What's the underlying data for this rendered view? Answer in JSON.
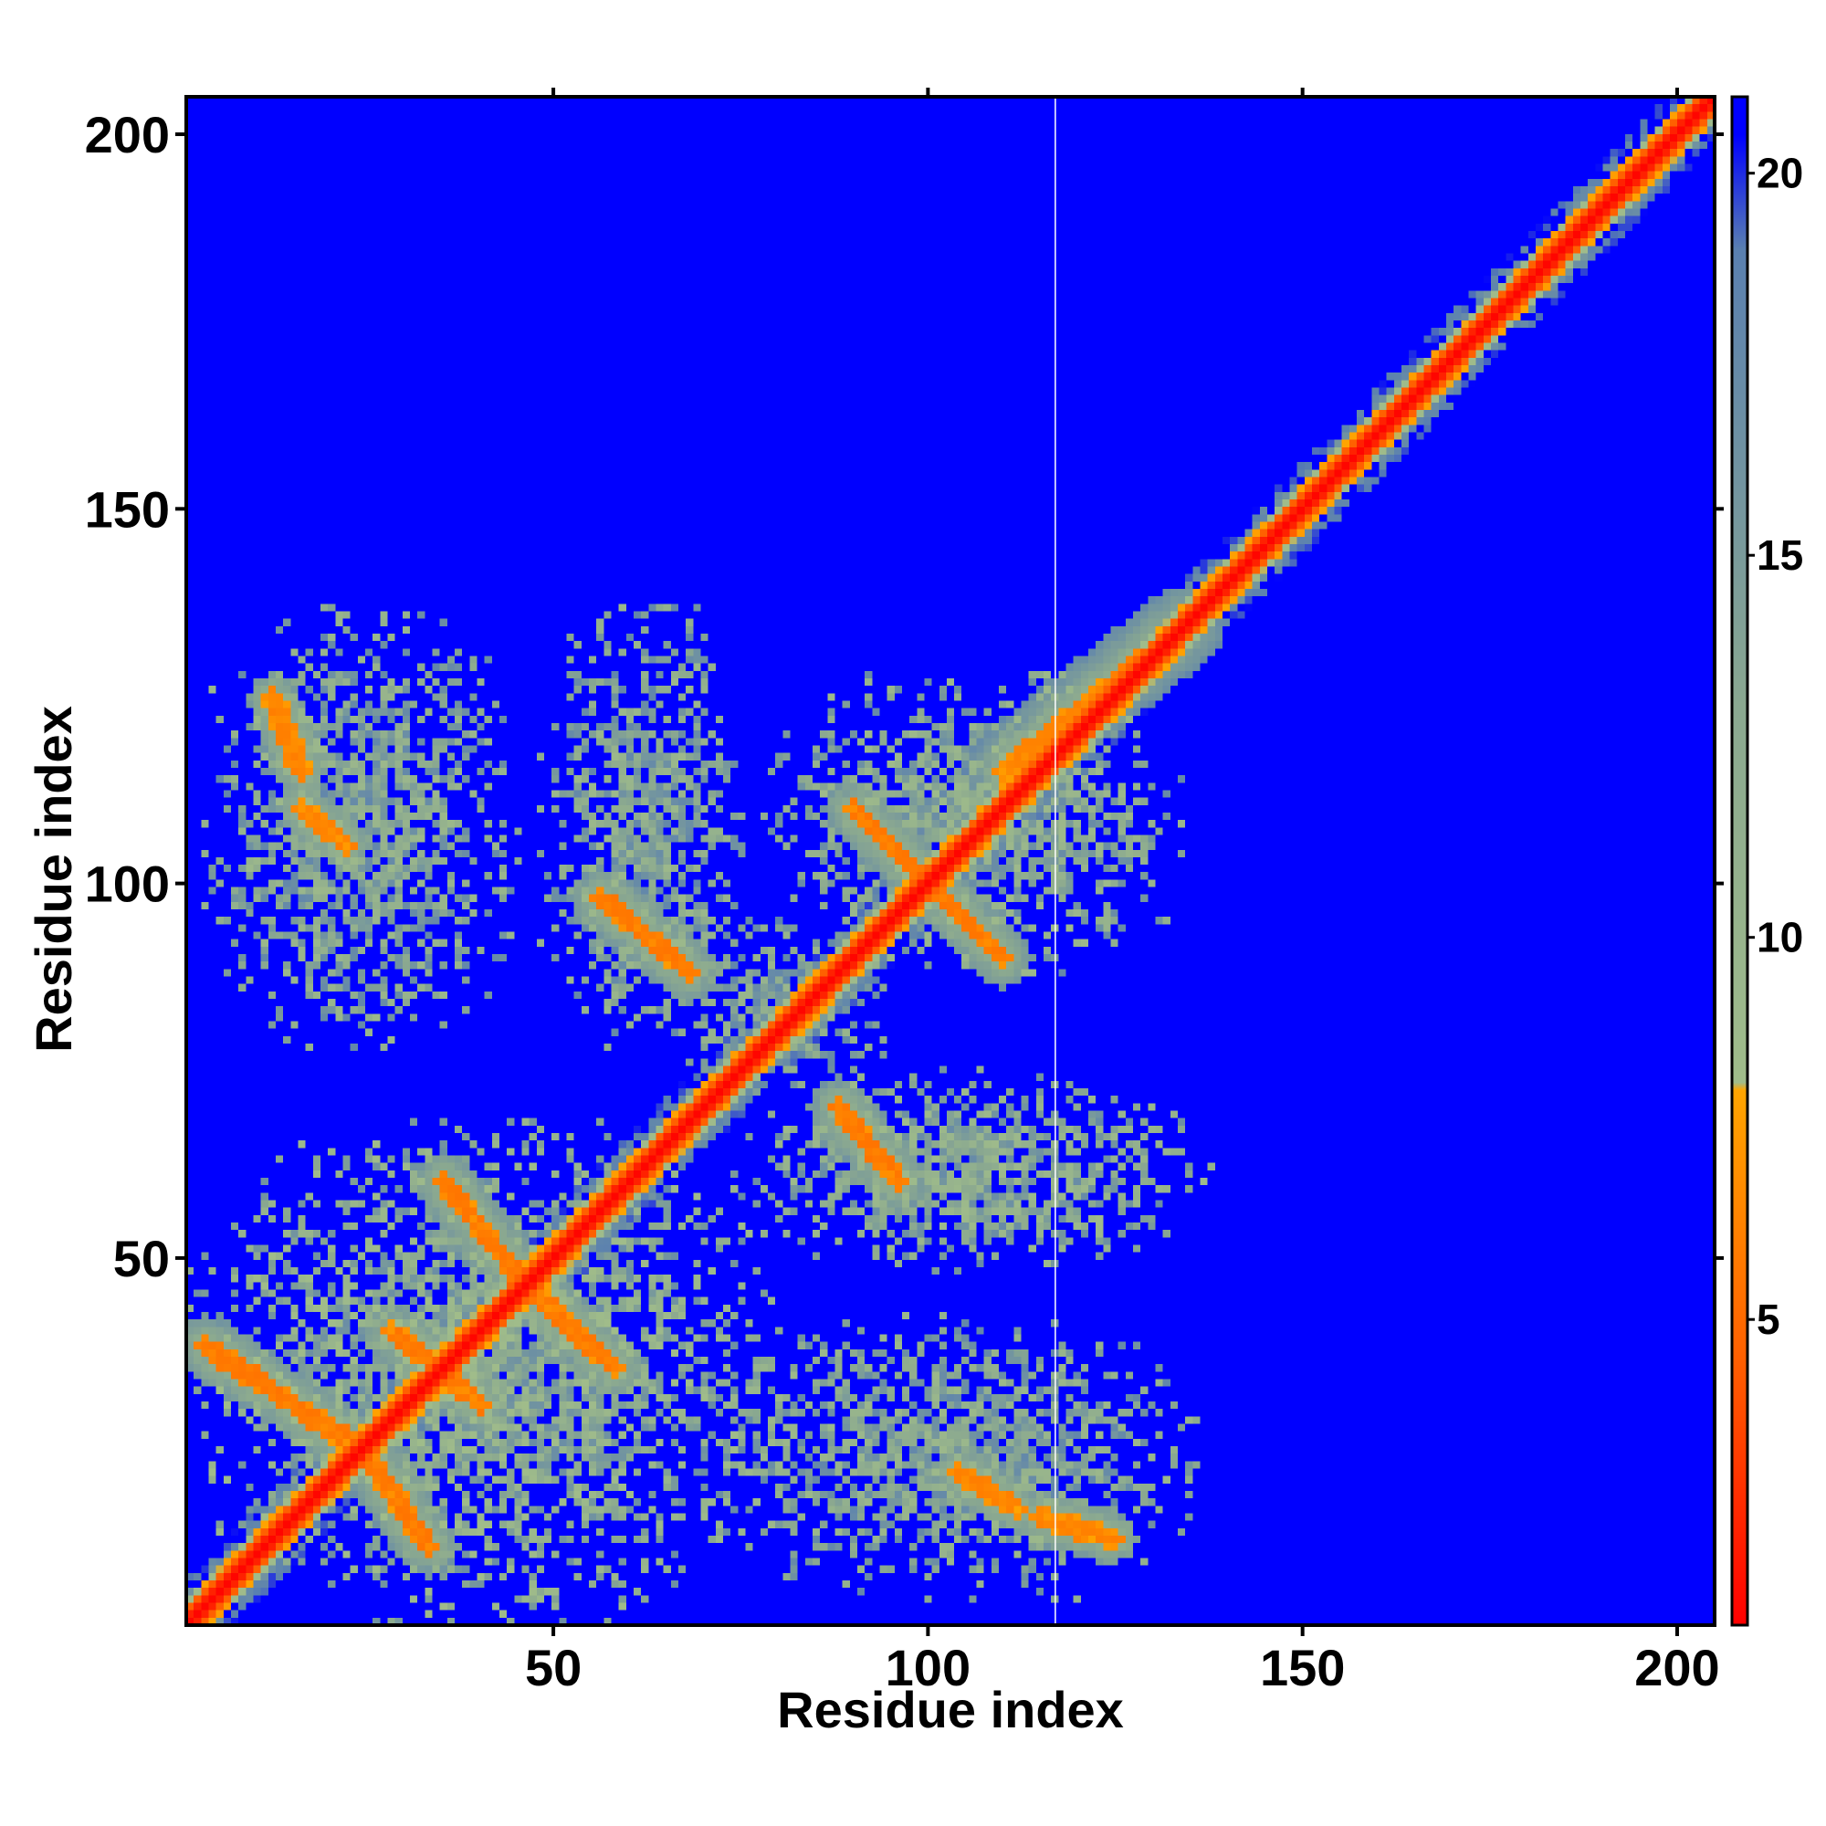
{
  "chart_data": {
    "type": "heatmap",
    "title": "",
    "xlabel": "Residue index",
    "ylabel": "Residue index",
    "xlim": [
      1,
      205
    ],
    "ylim": [
      1,
      205
    ],
    "x_ticks": [
      50,
      100,
      150,
      200
    ],
    "y_ticks": [
      50,
      100,
      150,
      200
    ],
    "x_tick_labels": [
      "50",
      "100",
      "150",
      "200"
    ],
    "y_tick_labels": [
      "50",
      "100",
      "150",
      "200"
    ],
    "colorbar": {
      "range": [
        1,
        21
      ],
      "ticks": [
        5,
        10,
        15,
        20
      ],
      "tick_labels": [
        "5",
        "10",
        "15",
        "20"
      ],
      "stops": [
        {
          "value": 1,
          "color": "#ff0000"
        },
        {
          "value": 4.5,
          "color": "#ff6000"
        },
        {
          "value": 8,
          "color": "#ffa500"
        },
        {
          "value": 8.1,
          "color": "#a0bc8a"
        },
        {
          "value": 13,
          "color": "#8aa890"
        },
        {
          "value": 19,
          "color": "#5a80b0"
        },
        {
          "value": 20.5,
          "color": "#0000ff"
        }
      ]
    },
    "background_value": 21,
    "background_color": "#0000ff",
    "gap_line_x": 117,
    "diagonal": {
      "core_value": 1.5,
      "halo_width": 3.5
    },
    "contact_segments": [
      {
        "x0": 3,
        "y0": 38,
        "x1": 24,
        "y1": 24,
        "value": 6.5,
        "width": 4
      },
      {
        "x0": 24,
        "y0": 24,
        "x1": 33,
        "y1": 11,
        "value": 6.5,
        "width": 4
      },
      {
        "x0": 28,
        "y0": 40,
        "x1": 40,
        "y1": 30,
        "value": 6.5,
        "width": 4
      },
      {
        "x0": 35,
        "y0": 60,
        "x1": 46,
        "y1": 46,
        "value": 6.5,
        "width": 4
      },
      {
        "x0": 46,
        "y0": 46,
        "x1": 58,
        "y1": 35,
        "value": 6.5,
        "width": 4
      },
      {
        "x0": 90,
        "y0": 110,
        "x1": 100,
        "y1": 100,
        "value": 6.5,
        "width": 4
      },
      {
        "x0": 100,
        "y0": 100,
        "x1": 110,
        "y1": 90,
        "value": 6.5,
        "width": 4
      },
      {
        "x0": 56,
        "y0": 98,
        "x1": 68,
        "y1": 88,
        "value": 6.5,
        "width": 4
      },
      {
        "x0": 88,
        "y0": 70,
        "x1": 96,
        "y1": 60,
        "value": 6.5,
        "width": 4
      },
      {
        "x0": 12,
        "y0": 125,
        "x1": 16,
        "y1": 115,
        "value": 7,
        "width": 3
      },
      {
        "x0": 16,
        "y0": 110,
        "x1": 22,
        "y1": 105,
        "value": 7,
        "width": 3
      },
      {
        "x0": 104,
        "y0": 21,
        "x1": 112,
        "y1": 16,
        "value": 7,
        "width": 3
      },
      {
        "x0": 115,
        "y0": 15,
        "x1": 125,
        "y1": 12,
        "value": 7,
        "width": 3
      },
      {
        "x0": 110,
        "y0": 115,
        "x1": 135,
        "y1": 135,
        "value": 7,
        "width": 5
      }
    ],
    "contact_regions": [
      {
        "x0": 1,
        "x1": 80,
        "y0": 1,
        "y1": 68,
        "value": 12.5
      },
      {
        "x0": 3,
        "x1": 45,
        "y0": 78,
        "y1": 137,
        "value": 13.5
      },
      {
        "x0": 48,
        "x1": 75,
        "y0": 78,
        "y1": 138,
        "value": 13.5
      },
      {
        "x0": 78,
        "x1": 135,
        "y0": 88,
        "y1": 128,
        "value": 13
      },
      {
        "x0": 74,
        "x1": 138,
        "y0": 48,
        "y1": 75,
        "value": 13
      },
      {
        "x0": 70,
        "x1": 136,
        "y0": 4,
        "y1": 42,
        "value": 13.5
      },
      {
        "x0": 65,
        "x1": 95,
        "y0": 72,
        "y1": 95,
        "value": 14
      }
    ]
  }
}
